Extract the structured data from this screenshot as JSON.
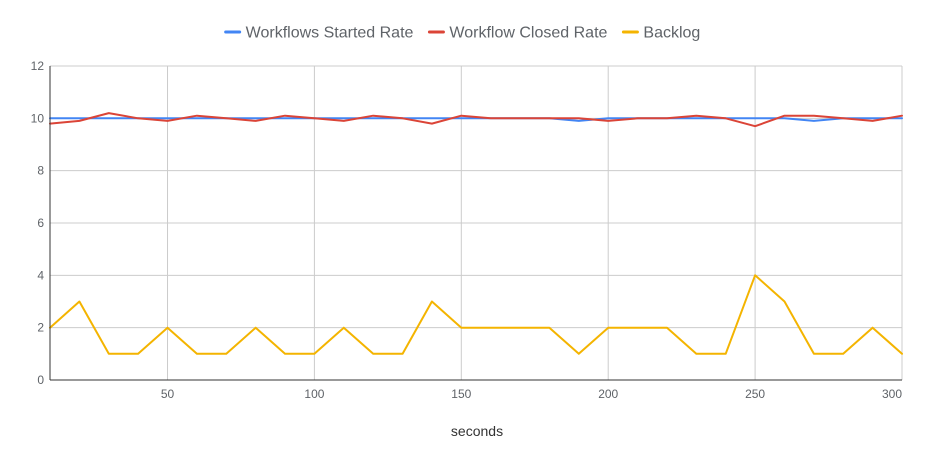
{
  "chart_data": {
    "type": "line",
    "xlabel": "seconds",
    "ylabel": "",
    "xlim": [
      10,
      300
    ],
    "ylim": [
      0,
      12
    ],
    "x_ticks": [
      50,
      100,
      150,
      200,
      250,
      300
    ],
    "y_ticks": [
      0,
      2,
      4,
      6,
      8,
      10,
      12
    ],
    "grid": true,
    "legend_position": "top",
    "x": [
      10,
      20,
      30,
      40,
      50,
      60,
      70,
      80,
      90,
      100,
      110,
      120,
      130,
      140,
      150,
      160,
      170,
      180,
      190,
      200,
      210,
      220,
      230,
      240,
      250,
      260,
      270,
      280,
      290,
      300
    ],
    "series": [
      {
        "name": "Workflows Started Rate",
        "color": "#4285f4",
        "values": [
          10,
          10,
          10,
          10,
          10,
          10,
          10,
          10,
          10,
          10,
          10,
          10,
          10,
          10,
          10,
          10,
          10,
          10,
          9.9,
          10,
          10,
          10,
          10,
          10,
          10,
          10,
          9.9,
          10,
          10,
          10
        ]
      },
      {
        "name": "Workflow Closed Rate",
        "color": "#db4437",
        "values": [
          9.8,
          9.9,
          10.2,
          10,
          9.9,
          10.1,
          10,
          9.9,
          10.1,
          10,
          9.9,
          10.1,
          10,
          9.8,
          10.1,
          10,
          10,
          10,
          10,
          9.9,
          10,
          10,
          10.1,
          10,
          9.7,
          10.1,
          10.1,
          10,
          9.9,
          10.1
        ]
      },
      {
        "name": "Backlog",
        "color": "#f4b400",
        "values": [
          2,
          3,
          1,
          1,
          2,
          1,
          1,
          2,
          1,
          1,
          2,
          1,
          1,
          3,
          2,
          2,
          2,
          2,
          1,
          2,
          2,
          2,
          1,
          1,
          4,
          3,
          1,
          1,
          2,
          1
        ]
      }
    ]
  }
}
